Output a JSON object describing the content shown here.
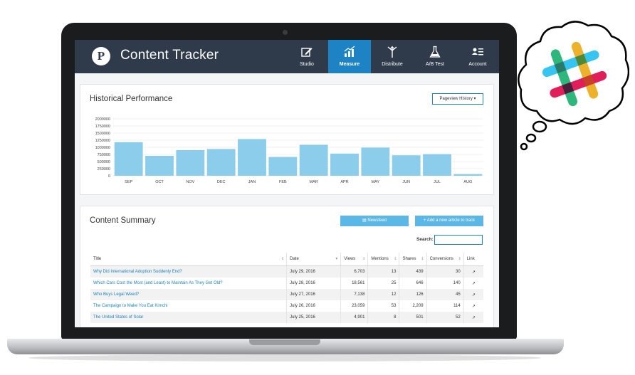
{
  "app": {
    "logo_letter": "P",
    "title": "Content Tracker"
  },
  "nav": [
    {
      "label": "Studio",
      "icon": "edit-icon",
      "active": false
    },
    {
      "label": "Measure",
      "icon": "bar-chart-icon",
      "active": true
    },
    {
      "label": "Distribute",
      "icon": "share-icon",
      "active": false
    },
    {
      "label": "A/B Test",
      "icon": "flask-icon",
      "active": false
    },
    {
      "label": "Account",
      "icon": "user-card-icon",
      "active": false
    }
  ],
  "historical": {
    "title": "Historical Performance",
    "dropdown": "Pageview History"
  },
  "chart_data": {
    "type": "bar",
    "categories": [
      "SEP",
      "OCT",
      "NOV",
      "DEC",
      "JAN",
      "FEB",
      "MAR",
      "APR",
      "MAY",
      "JUN",
      "JUL",
      "AUG"
    ],
    "values": [
      1180000,
      700000,
      900000,
      940000,
      1290000,
      660000,
      1090000,
      780000,
      990000,
      720000,
      760000,
      60000
    ],
    "ylim": [
      0,
      2000000
    ],
    "ytick_labels": [
      "2000000",
      "1750000",
      "1500000",
      "1250000",
      "1000000",
      "750000",
      "500000",
      "250000",
      "0"
    ],
    "grid": true,
    "bar_color": "#8dcdec"
  },
  "summary": {
    "title": "Content Summary",
    "newsfeed_label": "Newsfeed",
    "add_label": "+ Add a new article to track",
    "search_label": "Search:",
    "search_value": ""
  },
  "table": {
    "headers": [
      "Title",
      "Date",
      "Views",
      "Mentions",
      "Shares",
      "Conversions",
      "Link"
    ],
    "rows": [
      {
        "title": "Why Did International Adoption Suddenly End?",
        "date": "July 29, 2016",
        "views": "6,703",
        "mentions": "13",
        "shares": "439",
        "conversions": "30"
      },
      {
        "title": "Which Cars Cost the Most (and Least) to Maintain As They Get Old?",
        "date": "July 28, 2016",
        "views": "18,561",
        "mentions": "25",
        "shares": "646",
        "conversions": "140"
      },
      {
        "title": "Who Buys Legal Weed?",
        "date": "July 27, 2016",
        "views": "7,138",
        "mentions": "12",
        "shares": "126",
        "conversions": "45"
      },
      {
        "title": "The Campaign to Make You Eat Kimchi",
        "date": "July 26, 2016",
        "views": "23,059",
        "mentions": "53",
        "shares": "2,209",
        "conversions": "114"
      },
      {
        "title": "The United States of Solar",
        "date": "July 25, 2016",
        "views": "4,901",
        "mentions": "8",
        "shares": "501",
        "conversions": "52"
      }
    ]
  },
  "thought_bubble": {
    "icon": "slack-logo-icon",
    "colors": [
      "#36c5f0",
      "#2eb67d",
      "#ecb22e",
      "#e01e5a"
    ]
  }
}
